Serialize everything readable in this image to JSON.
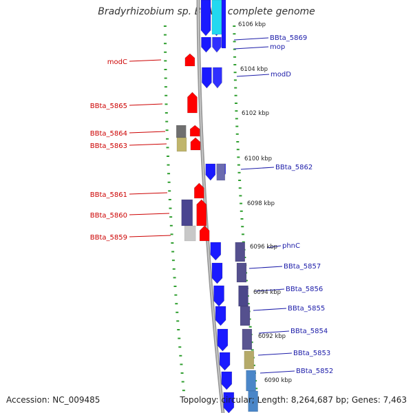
{
  "title": "Bradyrhizobium sp. BTAi1, complete genome",
  "footer": {
    "accession": "Accession: NC_009485",
    "summary": "Topology: circular; Length: 8,264,687 bp; Genes: 7,463"
  },
  "kbp_labels": [
    "6106 kbp",
    "6104 kbp",
    "6102 kbp",
    "6100 kbp",
    "6098 kbp",
    "6096 kbp",
    "6094 kbp",
    "6092 kbp",
    "6090 kbp"
  ],
  "genes_left": [
    "modC",
    "BBta_5865",
    "BBta_5864",
    "BBta_5863",
    "BBta_5861",
    "BBta_5860",
    "BBta_5859"
  ],
  "genes_right": [
    "BBta_5869",
    "mop",
    "modD",
    "BBta_5862",
    "phnC",
    "BBta_5857",
    "BBta_5856",
    "BBta_5855",
    "BBta_5854",
    "BBta_5853",
    "BBta_5852"
  ],
  "colors": {
    "minus_strand_gene": "#ff0000",
    "plus_strand_gene": "#1a1aff",
    "backbone": "#888888",
    "ticks": "#2e9e2e",
    "left_label": "#cc0000",
    "right_label": "#1a1aa8"
  }
}
